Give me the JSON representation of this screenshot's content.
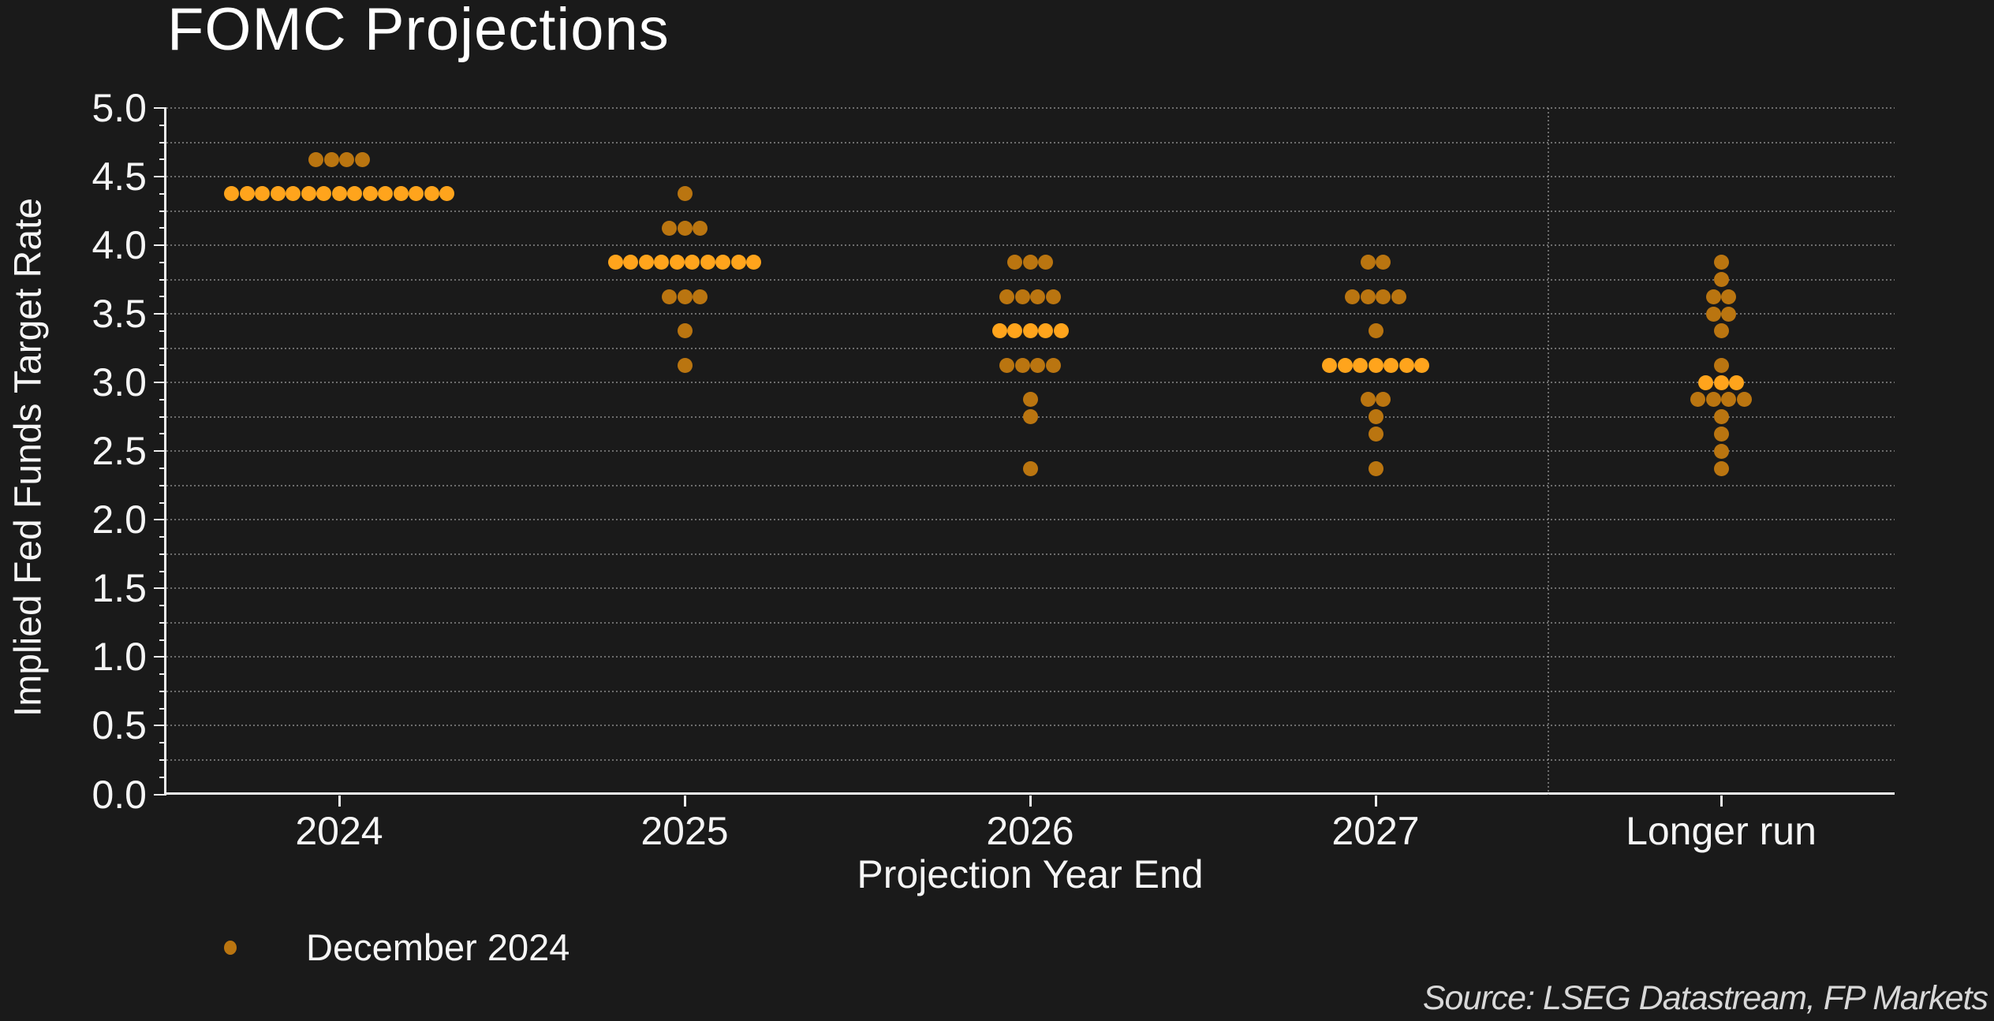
{
  "title": "FOMC Projections",
  "y_axis": {
    "label": "Implied Fed Funds Target Rate",
    "ticks": [
      "5.0",
      "4.5",
      "4.0",
      "3.5",
      "3.0",
      "2.5",
      "2.0",
      "1.5",
      "1.0",
      "0.5",
      "0.0"
    ]
  },
  "x_axis": {
    "label": "Projection Year End",
    "categories": [
      "2024",
      "2025",
      "2026",
      "2027",
      "Longer run"
    ]
  },
  "legend": {
    "label": "December 2024"
  },
  "source": "Source: LSEG Datastream, FP Markets",
  "colors": {
    "background": "#1a1a1a",
    "text": "#f5f5f5",
    "grid": "#9a9a9a",
    "dot": "#ba7510",
    "dot_highlight": "#ffa41c",
    "source_text": "#d8d8d8"
  },
  "chart_data": {
    "type": "scatter",
    "subtype": "dot-plot",
    "title": "FOMC Projections",
    "xlabel": "Projection Year End",
    "ylabel": "Implied Fed Funds Target Rate",
    "ylim": [
      0.0,
      5.0
    ],
    "y_tick_step": 0.5,
    "grid_step": 0.25,
    "grid": "dotted",
    "legend_position": "bottom-left",
    "legend_entries": [
      "December 2024"
    ],
    "categories": [
      "2024",
      "2025",
      "2026",
      "2027",
      "Longer run"
    ],
    "separator_before_category": "Longer run",
    "series": [
      {
        "category": "2024",
        "dots": [
          {
            "rate": 4.625,
            "count": 4,
            "median": false
          },
          {
            "rate": 4.375,
            "count": 15,
            "median": true
          }
        ]
      },
      {
        "category": "2025",
        "dots": [
          {
            "rate": 4.375,
            "count": 1,
            "median": false
          },
          {
            "rate": 4.125,
            "count": 3,
            "median": false
          },
          {
            "rate": 3.875,
            "count": 10,
            "median": true
          },
          {
            "rate": 3.625,
            "count": 3,
            "median": false
          },
          {
            "rate": 3.375,
            "count": 1,
            "median": false
          },
          {
            "rate": 3.125,
            "count": 1,
            "median": false
          }
        ]
      },
      {
        "category": "2026",
        "dots": [
          {
            "rate": 3.875,
            "count": 3,
            "median": false
          },
          {
            "rate": 3.625,
            "count": 4,
            "median": false
          },
          {
            "rate": 3.375,
            "count": 5,
            "median": true
          },
          {
            "rate": 3.125,
            "count": 4,
            "median": false
          },
          {
            "rate": 2.875,
            "count": 1,
            "median": false
          },
          {
            "rate": 2.75,
            "count": 1,
            "median": false
          },
          {
            "rate": 2.375,
            "count": 1,
            "median": false
          }
        ]
      },
      {
        "category": "2027",
        "dots": [
          {
            "rate": 3.875,
            "count": 2,
            "median": false
          },
          {
            "rate": 3.625,
            "count": 4,
            "median": false
          },
          {
            "rate": 3.375,
            "count": 1,
            "median": false
          },
          {
            "rate": 3.125,
            "count": 7,
            "median": true
          },
          {
            "rate": 2.875,
            "count": 2,
            "median": false
          },
          {
            "rate": 2.75,
            "count": 1,
            "median": false
          },
          {
            "rate": 2.625,
            "count": 1,
            "median": false
          },
          {
            "rate": 2.375,
            "count": 1,
            "median": false
          }
        ]
      },
      {
        "category": "Longer run",
        "dots": [
          {
            "rate": 3.875,
            "count": 1,
            "median": false
          },
          {
            "rate": 3.75,
            "count": 1,
            "median": false
          },
          {
            "rate": 3.625,
            "count": 2,
            "median": false
          },
          {
            "rate": 3.5,
            "count": 2,
            "median": false
          },
          {
            "rate": 3.375,
            "count": 1,
            "median": false
          },
          {
            "rate": 3.125,
            "count": 1,
            "median": false
          },
          {
            "rate": 3.0,
            "count": 3,
            "median": true
          },
          {
            "rate": 2.875,
            "count": 4,
            "median": false
          },
          {
            "rate": 2.75,
            "count": 1,
            "median": false
          },
          {
            "rate": 2.625,
            "count": 1,
            "median": false
          },
          {
            "rate": 2.5,
            "count": 1,
            "median": false
          },
          {
            "rate": 2.375,
            "count": 1,
            "median": false
          }
        ]
      }
    ]
  }
}
